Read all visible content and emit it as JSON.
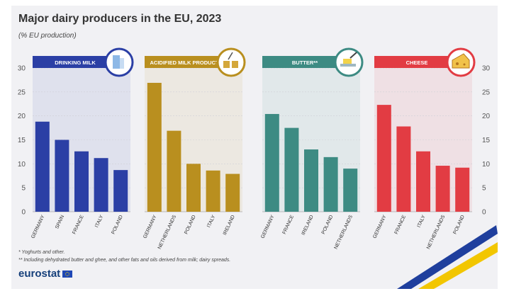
{
  "title": "Major dairy producers in the EU, 2023",
  "subtitle": "(% EU production)",
  "footnotes": [
    "* Yoghurts and other.",
    "** Including dehydrated butter and ghee, and other fats and oils derived from milk; dairy spreads."
  ],
  "logo": "eurostat",
  "colors": {
    "drinking_milk": "#2b3fa5",
    "acidified": "#b98f1f",
    "butter": "#3d8b83",
    "cheese": "#e23c43",
    "grid": "#cfcfd6",
    "axis_text": "#555555"
  },
  "chart_data": [
    {
      "type": "bar",
      "title": "DRINKING MILK",
      "icon": "milk-carton-icon",
      "categories": [
        "GERMANY",
        "SPAIN",
        "FRANCE",
        "ITALY",
        "POLAND"
      ],
      "values": [
        18.8,
        15.0,
        12.6,
        11.2,
        8.7
      ],
      "ylim": [
        0,
        30
      ],
      "yticks": [
        0,
        5,
        10,
        15,
        20,
        25,
        30
      ],
      "ylabel": "",
      "xlabel": ""
    },
    {
      "type": "bar",
      "title": "ACIDIFIED MILK PRODUCTS*",
      "icon": "yoghurt-cups-icon",
      "categories": [
        "GERMANY",
        "NETHERLANDS",
        "POLAND",
        "ITALY",
        "IRELAND"
      ],
      "values": [
        26.9,
        16.9,
        10.0,
        8.6,
        7.9
      ],
      "ylim": [
        0,
        30
      ],
      "ylabel": "",
      "xlabel": ""
    },
    {
      "type": "bar",
      "title": "BUTTER**",
      "icon": "butter-dish-icon",
      "categories": [
        "GERMANY",
        "FRANCE",
        "IRELAND",
        "POLAND",
        "NETHERLANDS"
      ],
      "values": [
        20.4,
        17.5,
        13.0,
        11.4,
        9.0
      ],
      "ylim": [
        0,
        30
      ],
      "ylabel": "",
      "xlabel": ""
    },
    {
      "type": "bar",
      "title": "CHEESE",
      "icon": "cheese-icon",
      "categories": [
        "GERMANY",
        "FRANCE",
        "ITALY",
        "NETHERLANDS",
        "POLAND"
      ],
      "values": [
        22.3,
        17.8,
        12.6,
        9.6,
        9.2
      ],
      "ylim": [
        0,
        30
      ],
      "yticks": [
        0,
        5,
        10,
        15,
        20,
        25,
        30
      ],
      "ylabel": "",
      "xlabel": ""
    }
  ]
}
